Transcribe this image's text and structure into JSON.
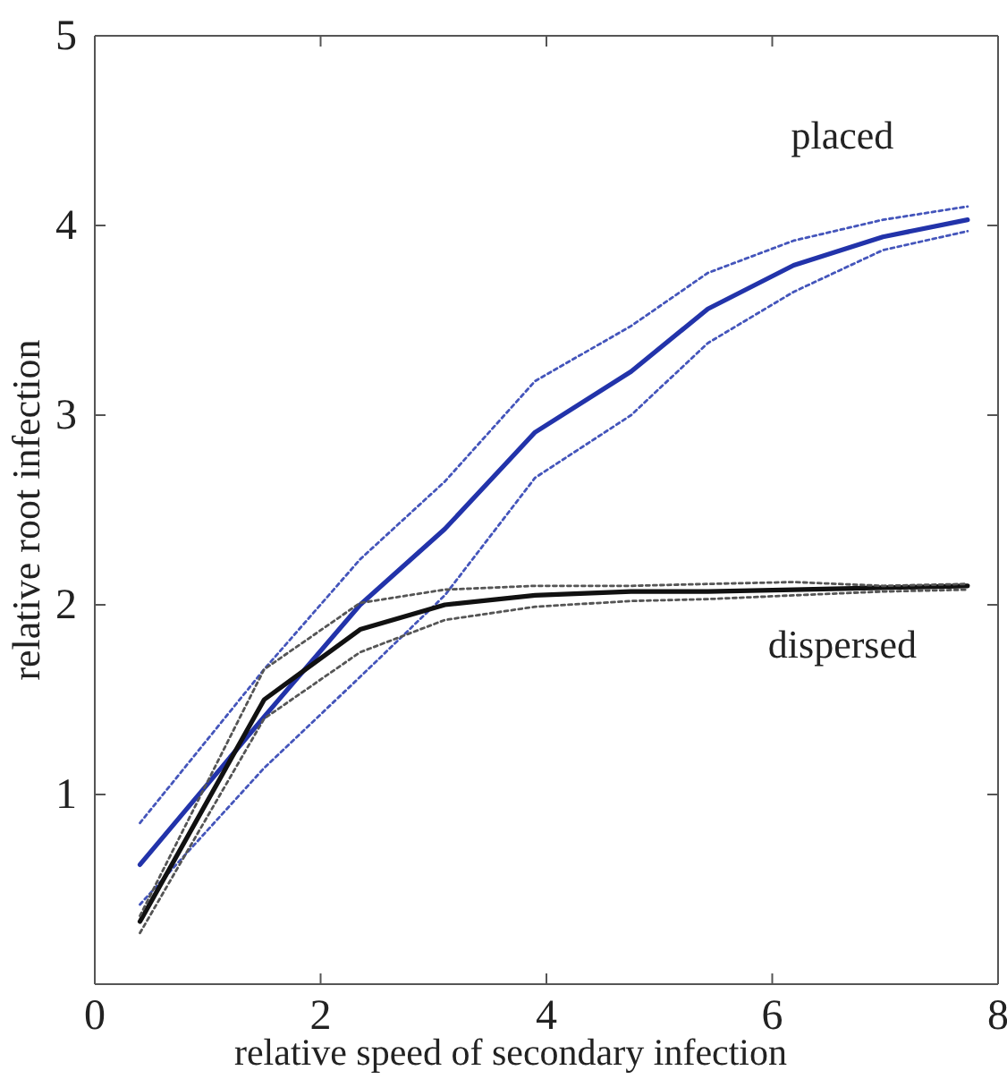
{
  "chart_data": {
    "type": "line",
    "xlabel": "relative speed of secondary infection",
    "ylabel": "relative root infection",
    "xlim": [
      0,
      8
    ],
    "ylim": [
      0,
      5
    ],
    "xticks": [
      0,
      2,
      4,
      6,
      8
    ],
    "yticks": [
      1,
      2,
      3,
      4,
      5
    ],
    "grid": false,
    "marker": "none",
    "line_style": "solid",
    "x": [
      0.4,
      1.5,
      2.35,
      3.1,
      3.9,
      4.75,
      5.43,
      6.19,
      6.98,
      7.73
    ],
    "series": [
      {
        "name": "placed",
        "color": "#2233aa",
        "values": [
          0.63,
          1.41,
          2.0,
          2.4,
          2.91,
          3.23,
          3.56,
          3.79,
          3.94,
          4.03
        ]
      },
      {
        "color": "#4455bb",
        "line_style": "dotted",
        "values": [
          0.85,
          1.66,
          2.24,
          2.65,
          3.18,
          3.47,
          3.75,
          3.92,
          4.03,
          4.1
        ]
      },
      {
        "color": "#4455bb",
        "line_style": "dotted",
        "values": [
          0.42,
          1.14,
          1.62,
          2.05,
          2.67,
          3.0,
          3.38,
          3.65,
          3.87,
          3.97
        ]
      },
      {
        "name": "dispersed",
        "color": "#111111",
        "values": [
          0.33,
          1.5,
          1.87,
          2.0,
          2.05,
          2.07,
          2.07,
          2.08,
          2.09,
          2.1
        ]
      },
      {
        "color": "#555555",
        "line_style": "dotted",
        "values": [
          0.36,
          1.66,
          2.01,
          2.08,
          2.1,
          2.1,
          2.11,
          2.12,
          2.1,
          2.11
        ]
      },
      {
        "color": "#555555",
        "line_style": "dotted",
        "values": [
          0.27,
          1.4,
          1.75,
          1.92,
          1.99,
          2.02,
          2.03,
          2.05,
          2.07,
          2.08
        ]
      }
    ]
  }
}
